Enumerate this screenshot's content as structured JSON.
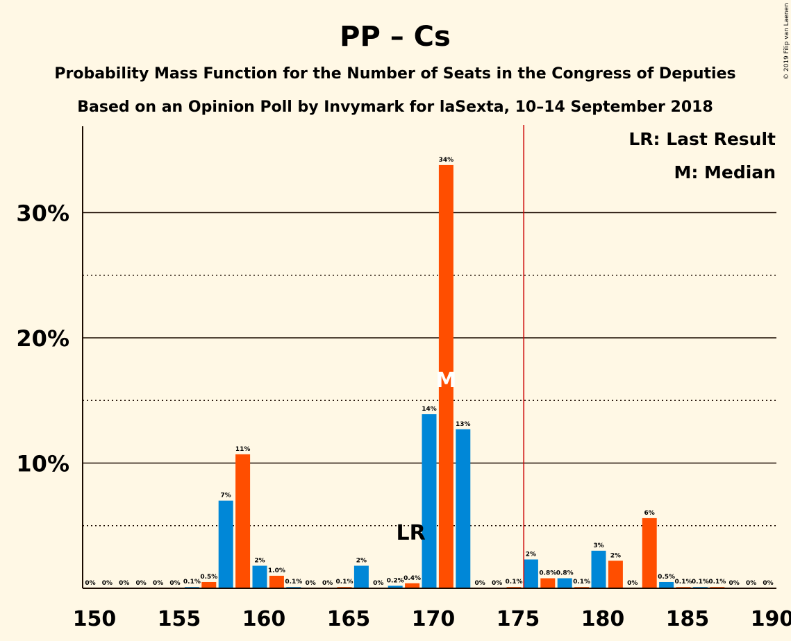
{
  "chart_data": {
    "type": "bar",
    "title": "PP – Cs",
    "subtitle": "Probability Mass Function for the Number of Seats in the Congress of Deputies",
    "subtitle2": "Based on an Opinion Poll by Invymark for laSexta, 10–14 September 2018",
    "copyright": "© 2019 Filip van Laenen",
    "legend": [
      "LR: Last Result",
      "M: Median"
    ],
    "legend_position": "top-right",
    "ylim": [
      0,
      36.6
    ],
    "xlim": [
      149.5,
      190.5
    ],
    "y_ticks": [
      10,
      20,
      30
    ],
    "y_tick_labels": [
      "10%",
      "20%",
      "30%"
    ],
    "y_dotted": [
      5,
      15,
      25
    ],
    "x_ticks": [
      150,
      155,
      160,
      165,
      170,
      175,
      180,
      185,
      190
    ],
    "last_result_seat": 169,
    "last_result_label": "LR",
    "median_seat": 171,
    "median_label": "M",
    "majority_line": 176,
    "colors": {
      "even": "#ff4e00",
      "odd": "#0087d7",
      "majority": "#cc0000",
      "text": "#1a0a00",
      "median_mark": "#ffffff"
    },
    "bars": [
      {
        "seat": 150,
        "value": 0,
        "label": "0%"
      },
      {
        "seat": 151,
        "value": 0,
        "label": "0%"
      },
      {
        "seat": 152,
        "value": 0,
        "label": "0%"
      },
      {
        "seat": 153,
        "value": 0,
        "label": "0%"
      },
      {
        "seat": 154,
        "value": 0,
        "label": "0%"
      },
      {
        "seat": 155,
        "value": 0,
        "label": "0%"
      },
      {
        "seat": 156,
        "value": 0.1,
        "label": "0.1%"
      },
      {
        "seat": 157,
        "value": 0.5,
        "label": "0.5%"
      },
      {
        "seat": 158,
        "value": 7.0,
        "label": "7%"
      },
      {
        "seat": 159,
        "value": 10.7,
        "label": "11%"
      },
      {
        "seat": 160,
        "value": 1.8,
        "label": "2%"
      },
      {
        "seat": 161,
        "value": 1.0,
        "label": "1.0%"
      },
      {
        "seat": 162,
        "value": 0.1,
        "label": "0.1%"
      },
      {
        "seat": 163,
        "value": 0,
        "label": "0%"
      },
      {
        "seat": 164,
        "value": 0,
        "label": "0%"
      },
      {
        "seat": 165,
        "value": 0.1,
        "label": "0.1%"
      },
      {
        "seat": 166,
        "value": 1.8,
        "label": "2%"
      },
      {
        "seat": 167,
        "value": 0,
        "label": "0%"
      },
      {
        "seat": 168,
        "value": 0.2,
        "label": "0.2%"
      },
      {
        "seat": 169,
        "value": 0.4,
        "label": "0.4%"
      },
      {
        "seat": 170,
        "value": 13.9,
        "label": "14%"
      },
      {
        "seat": 171,
        "value": 33.8,
        "label": "34%"
      },
      {
        "seat": 172,
        "value": 12.7,
        "label": "13%"
      },
      {
        "seat": 173,
        "value": 0,
        "label": "0%"
      },
      {
        "seat": 174,
        "value": 0,
        "label": "0%"
      },
      {
        "seat": 175,
        "value": 0.1,
        "label": "0.1%"
      },
      {
        "seat": 176,
        "value": 2.3,
        "label": "2%"
      },
      {
        "seat": 177,
        "value": 0.8,
        "label": "0.8%"
      },
      {
        "seat": 178,
        "value": 0.8,
        "label": "0.8%"
      },
      {
        "seat": 179,
        "value": 0.1,
        "label": "0.1%"
      },
      {
        "seat": 180,
        "value": 3.0,
        "label": "3%"
      },
      {
        "seat": 181,
        "value": 2.2,
        "label": "2%"
      },
      {
        "seat": 182,
        "value": 0,
        "label": "0%"
      },
      {
        "seat": 183,
        "value": 5.6,
        "label": "6%"
      },
      {
        "seat": 184,
        "value": 0.5,
        "label": "0.5%"
      },
      {
        "seat": 185,
        "value": 0.1,
        "label": "0.1%"
      },
      {
        "seat": 186,
        "value": 0.1,
        "label": "0.1%"
      },
      {
        "seat": 187,
        "value": 0.1,
        "label": "0.1%"
      },
      {
        "seat": 188,
        "value": 0,
        "label": "0%"
      },
      {
        "seat": 189,
        "value": 0,
        "label": "0%"
      },
      {
        "seat": 190,
        "value": 0,
        "label": "0%"
      }
    ]
  }
}
